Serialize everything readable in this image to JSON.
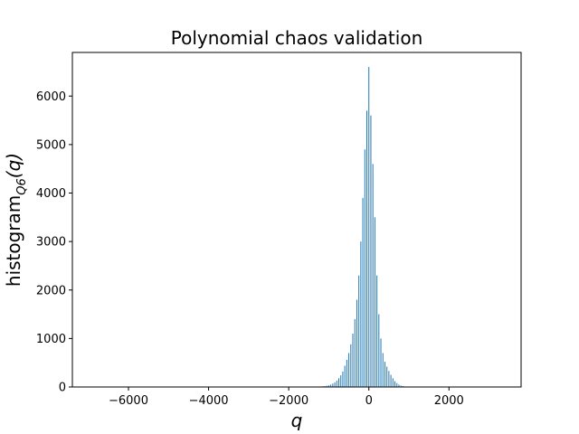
{
  "chart_data": {
    "type": "bar",
    "title": "Polynomial chaos validation",
    "xlabel": "q",
    "ylabel_main": "histogram",
    "ylabel_sub": "Q6",
    "ylabel_arg": "(q)",
    "xlim": [
      -7400,
      3800
    ],
    "ylim": [
      0,
      6900
    ],
    "xticks": [
      -6000,
      -4000,
      -2000,
      0,
      2000
    ],
    "xtick_labels": [
      "−6000",
      "−4000",
      "−2000",
      "0",
      "2000"
    ],
    "yticks": [
      0,
      1000,
      2000,
      3000,
      4000,
      5000,
      6000
    ],
    "ytick_labels": [
      "0",
      "1000",
      "2000",
      "3000",
      "4000",
      "5000",
      "6000"
    ],
    "bar_color": "#1f77b4",
    "bin_width": 22,
    "x": [
      -1300,
      -1250,
      -1200,
      -1150,
      -1100,
      -1050,
      -1000,
      -950,
      -900,
      -850,
      -800,
      -750,
      -700,
      -650,
      -600,
      -550,
      -500,
      -450,
      -400,
      -350,
      -300,
      -250,
      -200,
      -150,
      -100,
      -50,
      0,
      50,
      100,
      150,
      200,
      250,
      300,
      350,
      400,
      450,
      500,
      550,
      600,
      650,
      700,
      750,
      800,
      850,
      900,
      950,
      1000
    ],
    "values": [
      5,
      8,
      10,
      14,
      18,
      25,
      35,
      50,
      70,
      95,
      130,
      180,
      240,
      320,
      440,
      560,
      700,
      880,
      1100,
      1400,
      1800,
      2300,
      3000,
      3900,
      4900,
      5700,
      6600,
      5600,
      4600,
      3500,
      2300,
      1500,
      1000,
      700,
      520,
      420,
      330,
      250,
      180,
      120,
      80,
      50,
      30,
      18,
      10,
      5,
      3
    ],
    "grid": false,
    "legend": "none"
  }
}
